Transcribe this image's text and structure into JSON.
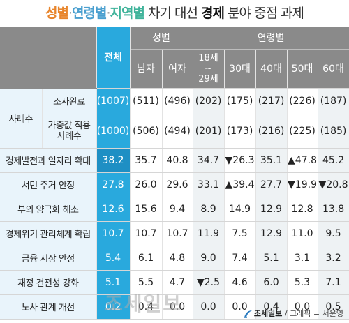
{
  "title": {
    "part1": "성별",
    "sep1": "·",
    "part2": "연령별",
    "sep2": "·",
    "part3": "지역별",
    "part4": " 차기 대선 ",
    "part5": "경제",
    "part6": " 분야 중점 과제"
  },
  "table": {
    "total_header": "전체",
    "group_gender": "성별",
    "group_age": "연령별",
    "columns": [
      "남자",
      "여자",
      "18세\n~\n29세",
      "30대",
      "40대",
      "50대",
      "60대"
    ],
    "sample_group_label": "사례수",
    "sample_rows": [
      {
        "label": "조사완료",
        "total": "(1007)",
        "values": [
          "(511)",
          "(496)",
          "(202)",
          "(175)",
          "(217)",
          "(226)",
          "(187)"
        ]
      },
      {
        "label": "가중값 적용\n사례수",
        "total": "(1000)",
        "values": [
          "(506)",
          "(494)",
          "(201)",
          "(173)",
          "(216)",
          "(225)",
          "(185)"
        ]
      }
    ],
    "rows": [
      {
        "label": "경제발전과 일자리 확대",
        "total": "38.2",
        "values": [
          "35.7",
          "40.8",
          "34.7",
          "▼26.3",
          "35.1",
          "▲47.8",
          "45.2"
        ]
      },
      {
        "label": "서민 주거 안정",
        "total": "27.8",
        "values": [
          "26.0",
          "29.6",
          "33.1",
          "▲39.4",
          "27.7",
          "▼19.9",
          "▼20.8"
        ]
      },
      {
        "label": "부의 양극화 해소",
        "total": "12.6",
        "values": [
          "15.6",
          "9.4",
          "8.9",
          "14.9",
          "12.9",
          "12.8",
          "13.8"
        ]
      },
      {
        "label": "경제위기 관리체계 확립",
        "total": "10.7",
        "values": [
          "10.7",
          "10.7",
          "11.9",
          "7.5",
          "12.9",
          "11.0",
          "9.5"
        ]
      },
      {
        "label": "금융 시장 안정",
        "total": "5.4",
        "values": [
          "6.1",
          "4.8",
          "9.0",
          "7.4",
          "5.1",
          "3.1",
          "3.2"
        ]
      },
      {
        "label": "재정 건전성 강화",
        "total": "5.1",
        "values": [
          "5.5",
          "4.7",
          "▼2.5",
          "4.6",
          "6.0",
          "5.3",
          "7.1"
        ]
      },
      {
        "label": "노사 관계 개선",
        "total": "0.2",
        "values": [
          "0.4",
          "0.0",
          "0.0",
          "0.0",
          "0.4",
          "0.0",
          "0.5"
        ]
      }
    ]
  },
  "watermark": "조세일보",
  "footer": {
    "logo_icon": "joseilbo-logo-icon",
    "brand": "조세일보",
    "sep": " / ",
    "credit": "그래픽 = 서윤영"
  },
  "colors": {
    "accent_total": "#29a9dd",
    "header_gray": "#8a8a8a",
    "title_gender": "#e8852c",
    "title_age": "#4a9fcf",
    "title_region": "#3fb39a"
  }
}
